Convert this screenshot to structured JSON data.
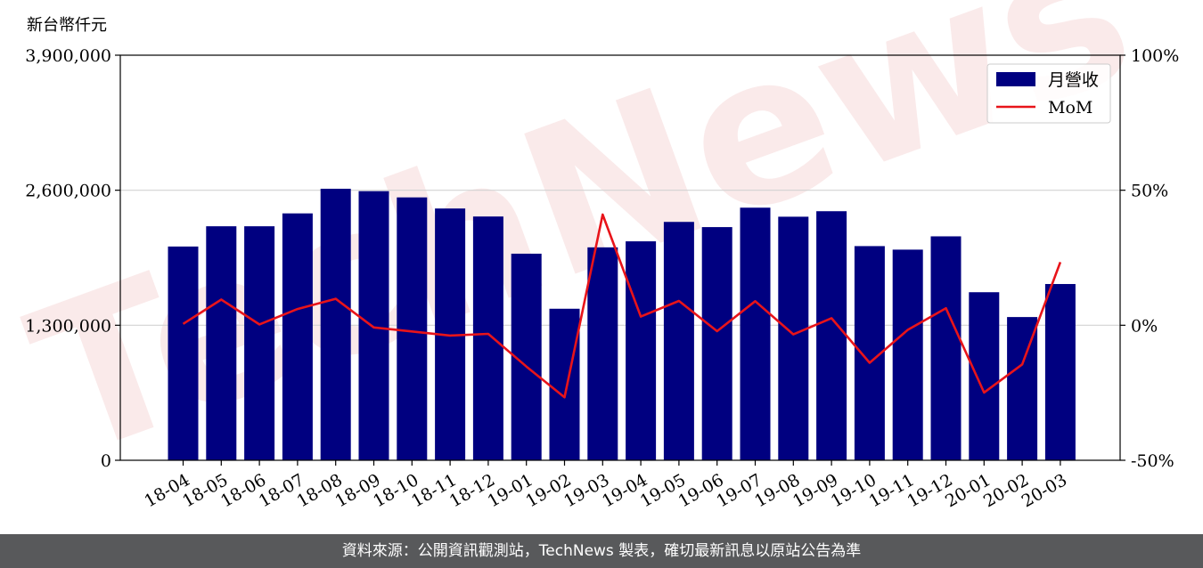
{
  "watermark": "TechNews",
  "footer": {
    "text": "資料來源：公開資訊觀測站，TechNews 製表，確切最新訊息以原站公告為準"
  },
  "chart_data": {
    "type": "bar",
    "ylabel": "新台幣仟元",
    "categories": [
      "18-04",
      "18-05",
      "18-06",
      "18-07",
      "18-08",
      "18-09",
      "18-10",
      "18-11",
      "18-12",
      "19-01",
      "19-02",
      "19-03",
      "19-04",
      "19-05",
      "19-06",
      "19-07",
      "19-08",
      "19-09",
      "19-10",
      "19-11",
      "19-12",
      "20-01",
      "20-02",
      "20-03"
    ],
    "series": [
      {
        "name": "月營收",
        "type": "bar",
        "axis": "left",
        "color": "#000080",
        "values": [
          2058000,
          2253000,
          2253000,
          2377000,
          2614000,
          2591000,
          2531000,
          2424000,
          2347000,
          1989000,
          1459000,
          2050000,
          2108000,
          2295000,
          2245000,
          2432000,
          2345000,
          2398000,
          2062000,
          2028000,
          2156000,
          1618000,
          1379000,
          1697000
        ]
      },
      {
        "name": "MoM",
        "type": "line",
        "axis": "right",
        "color": "#e8141a",
        "values": [
          0.5,
          9.5,
          0.3,
          6.0,
          9.8,
          -0.8,
          -2.3,
          -3.8,
          -3.2,
          -15.3,
          -26.7,
          41.0,
          3.2,
          9.0,
          -2.2,
          8.9,
          -3.4,
          2.6,
          -13.9,
          -1.7,
          6.3,
          -24.9,
          -14.5,
          23.4
        ]
      }
    ],
    "ylim": [
      0,
      3900000
    ],
    "yticks": [
      0,
      1300000,
      2600000,
      3900000
    ],
    "yticklabels": [
      "0",
      "1,300,000",
      "2,600,000",
      "3,900,000"
    ],
    "y2lim": [
      -50,
      100
    ],
    "y2ticks": [
      -50,
      0,
      50,
      100
    ],
    "y2ticklabels": [
      "-50%",
      "0%",
      "50%",
      "100%"
    ],
    "grid": "horizontal",
    "legend": "top-right"
  }
}
